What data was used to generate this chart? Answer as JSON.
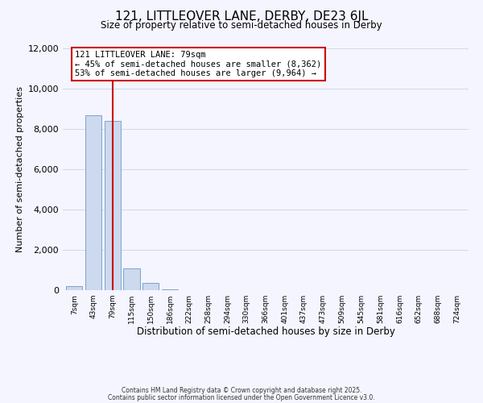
{
  "title": "121, LITTLEOVER LANE, DERBY, DE23 6JL",
  "subtitle": "Size of property relative to semi-detached houses in Derby",
  "xlabel": "Distribution of semi-detached houses by size in Derby",
  "ylabel": "Number of semi-detached properties",
  "bar_labels": [
    "7sqm",
    "43sqm",
    "79sqm",
    "115sqm",
    "150sqm",
    "186sqm",
    "222sqm",
    "258sqm",
    "294sqm",
    "330sqm",
    "366sqm",
    "401sqm",
    "437sqm",
    "473sqm",
    "509sqm",
    "545sqm",
    "581sqm",
    "616sqm",
    "652sqm",
    "688sqm",
    "724sqm"
  ],
  "bar_values": [
    200,
    8700,
    8400,
    1100,
    350,
    30,
    10,
    5,
    2,
    1,
    1,
    0,
    0,
    0,
    0,
    0,
    0,
    0,
    0,
    0,
    0
  ],
  "bar_color": "#ccd9ee",
  "bar_edge_color": "#7ba3cc",
  "vline_x_index": 2,
  "vline_color": "#cc0000",
  "ylim": [
    0,
    12000
  ],
  "yticks": [
    0,
    2000,
    4000,
    6000,
    8000,
    10000,
    12000
  ],
  "annotation_title": "121 LITTLEOVER LANE: 79sqm",
  "annotation_line1": "← 45% of semi-detached houses are smaller (8,362)",
  "annotation_line2": "53% of semi-detached houses are larger (9,964) →",
  "annotation_box_color": "#ffffff",
  "annotation_box_edge_color": "#cc0000",
  "footer_line1": "Contains HM Land Registry data © Crown copyright and database right 2025.",
  "footer_line2": "Contains public sector information licensed under the Open Government Licence v3.0.",
  "background_color": "#f5f5ff",
  "grid_color": "#c8d4e8"
}
